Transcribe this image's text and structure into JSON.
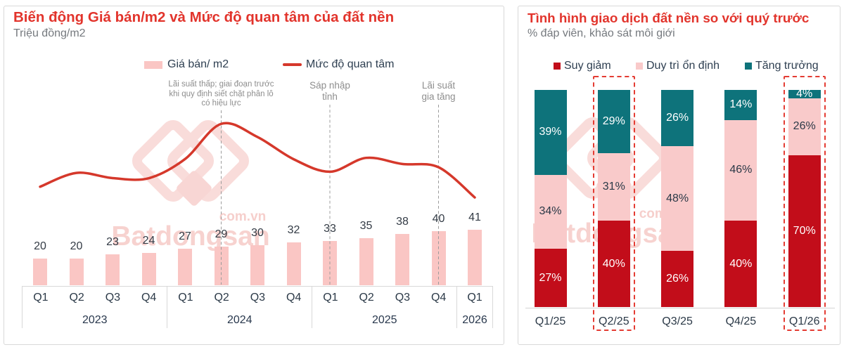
{
  "left_panel": {
    "title": "Biến động Giá bán/m2 và Mức độ quan tâm của đất nền",
    "subtitle": "Triệu đồng/m2",
    "legend": [
      {
        "label": "Giá bán/ m2",
        "swatch": "bar",
        "color": "#fac6c4"
      },
      {
        "label": "Mức độ quan tâm",
        "swatch": "line",
        "color": "#d5382b"
      }
    ],
    "annotations": [
      {
        "lines": [
          "Lãi suất thấp; giai đoạn trước",
          "khi quy định siết chặt phân lô",
          "có hiệu lực"
        ],
        "category_index": 5,
        "small": true
      },
      {
        "lines": [
          "Sáp nhập",
          "tỉnh"
        ],
        "category_index": 8,
        "small": false
      },
      {
        "lines": [
          "Lãi suất",
          "gia tăng"
        ],
        "category_index": 11,
        "small": false
      }
    ]
  },
  "right_panel": {
    "title": "Tình hình giao dịch đất nền so với quý trước",
    "subtitle": "% đáp viên, khảo sát môi giới"
  },
  "watermark": {
    "brand": "Batdongsan",
    "domain": "com.vn"
  },
  "colors": {
    "title_red": "#e2342c",
    "bar_pink": "#fac6c4",
    "line_red": "#d5382b",
    "decline_red": "#c20d1a",
    "stable_pink": "#f9caca",
    "growth_teal": "#0e737b",
    "highlight_dash_red": "#e43c33",
    "axis_gray": "#d8d8d8",
    "annotation_gray": "#8e8e8e",
    "dark_text": "#2b3947",
    "watermark_pink": "#f9dcda"
  },
  "chart_data": [
    {
      "type": "bar",
      "title": "Biến động Giá bán/m2 và Mức độ quan tâm của đất nền",
      "ylabel": "Triệu đồng/m2",
      "categories": [
        "Q1",
        "Q2",
        "Q3",
        "Q4",
        "Q1",
        "Q2",
        "Q3",
        "Q4",
        "Q1",
        "Q2",
        "Q3",
        "Q4",
        "Q1"
      ],
      "year_groups": [
        {
          "label": "2023",
          "count": 4
        },
        {
          "label": "2024",
          "count": 4
        },
        {
          "label": "2025",
          "count": 4
        },
        {
          "label": "2026",
          "count": 1
        }
      ],
      "series": [
        {
          "name": "Giá bán/ m2",
          "type": "bar",
          "color": "#fac6c4",
          "values": [
            20,
            20,
            23,
            24,
            27,
            29,
            30,
            32,
            33,
            35,
            38,
            40,
            41
          ]
        },
        {
          "name": "Mức độ quan tâm",
          "type": "line",
          "color": "#d5382b",
          "values": [
            72.9,
            83.1,
            79.3,
            79.2,
            93.3,
            119.3,
            109.6,
            93.2,
            84.0,
            94.2,
            89.7,
            87.3,
            65.0
          ]
        }
      ],
      "legend_position": "top",
      "grid": false
    },
    {
      "type": "stacked-bar",
      "title": "Tình hình giao dịch đất nền so với quý trước",
      "ylabel": "% đáp viên, khảo sát môi giới",
      "categories": [
        "Q1/25",
        "Q2/25",
        "Q3/25",
        "Q4/25",
        "Q1/26"
      ],
      "series": [
        {
          "name": "Suy giảm",
          "color": "#c20d1a",
          "label_color": "#ffffff",
          "values": [
            27,
            40,
            26,
            40,
            70
          ]
        },
        {
          "name": "Duy trì ổn định",
          "color": "#f9caca",
          "label_color": "#2b3947",
          "values": [
            34,
            31,
            48,
            46,
            26
          ]
        },
        {
          "name": "Tăng trưởng",
          "color": "#0e737b",
          "label_color": "#ffffff",
          "values": [
            39,
            29,
            26,
            14,
            4
          ]
        }
      ],
      "value_suffix": "%",
      "highlighted_categories": [
        "Q2/25",
        "Q1/26"
      ],
      "legend_position": "top",
      "ylim": [
        0,
        100
      ],
      "grid": false
    }
  ]
}
